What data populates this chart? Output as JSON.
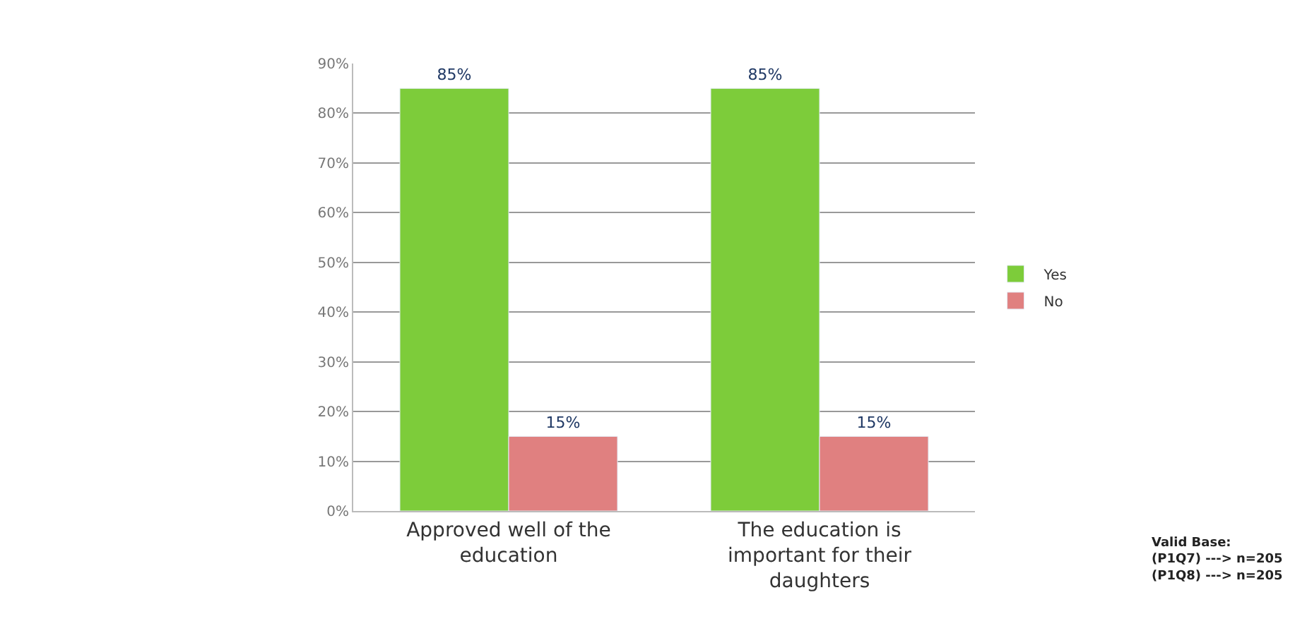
{
  "chart_data": {
    "type": "bar",
    "categories": [
      "Approved well of the education",
      "The education is important for their daughters"
    ],
    "series": [
      {
        "name": "Yes",
        "color": "#7dcc3a",
        "values": [
          85,
          85
        ],
        "value_labels": [
          "85%",
          "85%"
        ]
      },
      {
        "name": "No",
        "color": "#e08080",
        "values": [
          15,
          15
        ],
        "value_labels": [
          "15%",
          "15%"
        ]
      }
    ],
    "ylim": [
      0,
      90
    ],
    "yticks": [
      {
        "value": 0,
        "label": "0%"
      },
      {
        "value": 10,
        "label": "10%"
      },
      {
        "value": 20,
        "label": "20%"
      },
      {
        "value": 30,
        "label": "30%"
      },
      {
        "value": 40,
        "label": "40%"
      },
      {
        "value": 50,
        "label": "50%"
      },
      {
        "value": 60,
        "label": "60%"
      },
      {
        "value": 70,
        "label": "70%"
      },
      {
        "value": 80,
        "label": "80%"
      },
      {
        "value": 90,
        "label": "90%"
      }
    ],
    "grid": "y",
    "legend": "right",
    "annotations": [
      "Valid Base:\n(P1Q7) ---> n=205\n(P1Q8) ---> n=205"
    ]
  }
}
